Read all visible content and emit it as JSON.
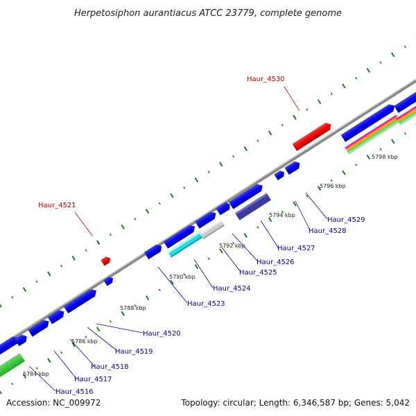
{
  "title": "Herpetosiphon aurantiacus ATCC 23779, complete genome",
  "footer": {
    "accession": "Accession: NC_009972",
    "summary": "Topology: circular; Length: 6,346,587 bp; Genes: 5,042"
  },
  "colors": {
    "forward_gene": "#0000ee",
    "highlight_gene": "#ee0000",
    "backbone": "#999999",
    "tick": "#1f7a1f",
    "label_blue": "#0000aa",
    "label_red": "#cc0000"
  },
  "scale_labels": [
    "5784 kbp",
    "5786 kbp",
    "5788 kbp",
    "5790 kbp",
    "5792 kbp",
    "5794 kbp",
    "5796 kbp",
    "5798 kbp"
  ],
  "gene_labels": [
    {
      "name": "Haur_4516",
      "highlight": false
    },
    {
      "name": "Haur_4517",
      "highlight": false
    },
    {
      "name": "Haur_4518",
      "highlight": false
    },
    {
      "name": "Haur_4519",
      "highlight": false
    },
    {
      "name": "Haur_4520",
      "highlight": false
    },
    {
      "name": "Haur_4521",
      "highlight": true
    },
    {
      "name": "Haur_4523",
      "highlight": false
    },
    {
      "name": "Haur_4524",
      "highlight": false
    },
    {
      "name": "Haur_4525",
      "highlight": false
    },
    {
      "name": "Haur_4526",
      "highlight": false
    },
    {
      "name": "Haur_4527",
      "highlight": false
    },
    {
      "name": "Haur_4528",
      "highlight": false
    },
    {
      "name": "Haur_4529",
      "highlight": false
    },
    {
      "name": "Haur_4530",
      "highlight": true
    }
  ]
}
